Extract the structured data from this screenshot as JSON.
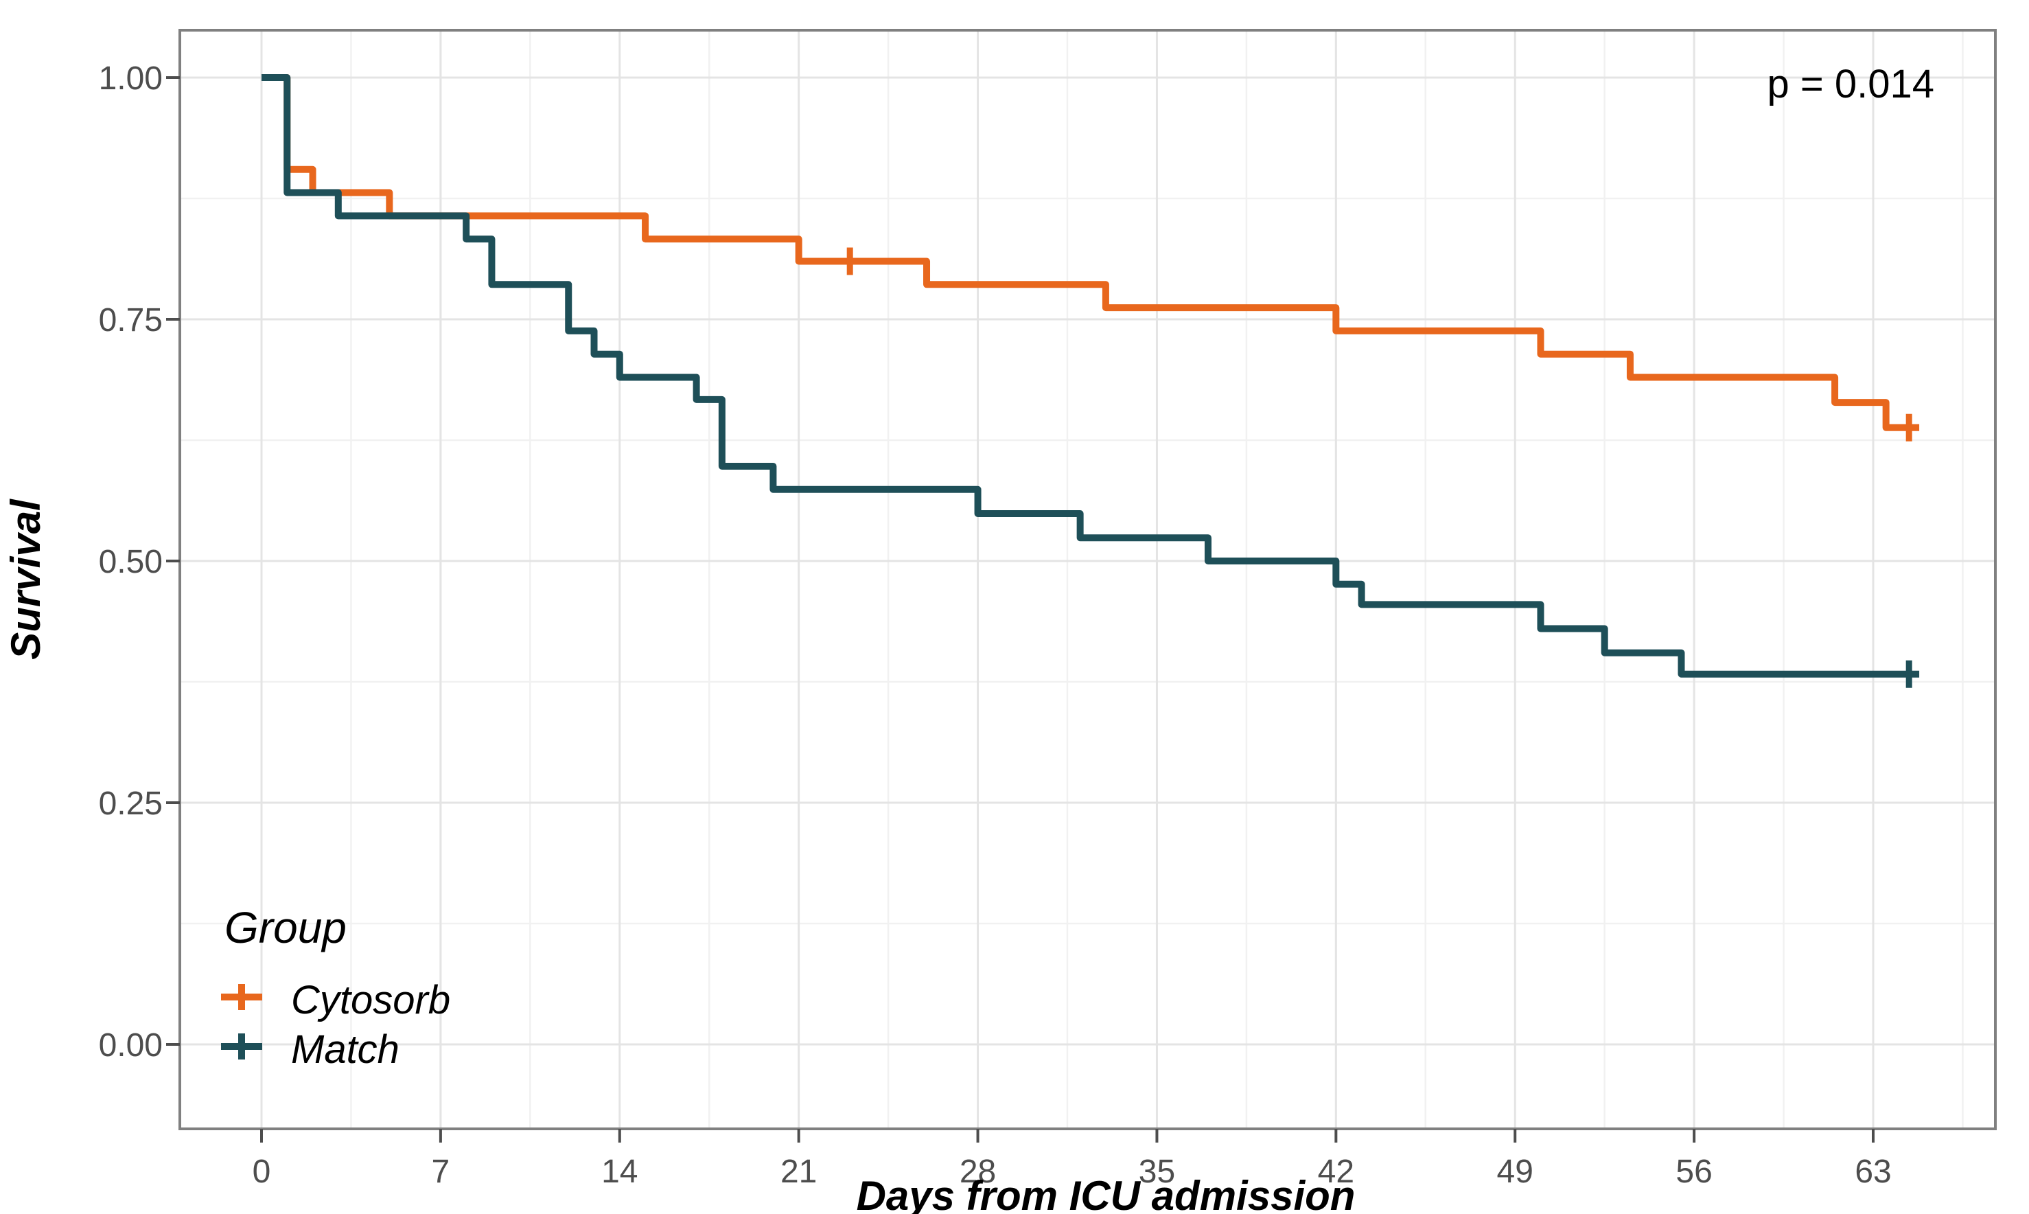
{
  "figure": {
    "background": "#ffffff",
    "panel_background": "#ffffff"
  },
  "colors": {
    "cytosorb": "#E8671D",
    "match": "#1E4F58",
    "grid_major": "#E4E4E4",
    "grid_minor": "#F1F1F1",
    "panel_border": "#808080",
    "tick_mark": "#4D4D4D",
    "tick_label": "#4D4D4D",
    "title_text": "#000000"
  },
  "annotation": {
    "p_value": "p = 0.014"
  },
  "axes": {
    "x": {
      "title": "Days from ICU admission",
      "major_ticks": [
        0,
        7,
        14,
        21,
        28,
        35,
        42,
        49,
        56,
        63
      ],
      "minor_ticks": [
        3.5,
        10.5,
        17.5,
        24.5,
        31.5,
        38.5,
        45.5,
        52.5,
        59.5,
        66.5
      ]
    },
    "y": {
      "title": "Survival",
      "major_ticks": [
        1.0,
        0.75,
        0.5,
        0.25,
        0.0
      ],
      "major_tick_labels": [
        "1.00",
        "0.75",
        "0.50",
        "0.25",
        "0.00"
      ],
      "minor_ticks": [
        0.875,
        0.625,
        0.375,
        0.125
      ]
    }
  },
  "legend": {
    "title": "Group",
    "items": [
      {
        "label": "Cytosorb",
        "color": "#E8671D",
        "key_icon": "plus-censor-icon"
      },
      {
        "label": "Match",
        "color": "#1E4F58",
        "key_icon": "plus-censor-icon"
      }
    ]
  },
  "chart_data": {
    "type": "line",
    "subtype": "kaplan-meier-step",
    "title": "",
    "xlabel": "Days from ICU admission",
    "ylabel": "Survival",
    "xlim": [
      -3.2,
      67.8
    ],
    "ylim": [
      -0.09,
      1.05
    ],
    "grid": true,
    "legend_position": "inside-bottom-left",
    "p_value_text": "p = 0.014",
    "series": [
      {
        "name": "Cytosorb",
        "color": "#E8671D",
        "steps": [
          [
            0,
            1.0
          ],
          [
            1,
            0.905
          ],
          [
            2,
            0.881
          ],
          [
            5,
            0.857
          ],
          [
            15,
            0.833
          ],
          [
            21,
            0.81
          ],
          [
            26,
            0.786
          ],
          [
            33,
            0.762
          ],
          [
            42,
            0.738
          ],
          [
            50,
            0.714
          ],
          [
            53.5,
            0.69
          ],
          [
            61.5,
            0.664
          ],
          [
            63.5,
            0.638
          ]
        ],
        "end_day": 64.8,
        "censors": [
          [
            23,
            0.81
          ],
          [
            64.4,
            0.638
          ]
        ]
      },
      {
        "name": "Match",
        "color": "#1E4F58",
        "steps": [
          [
            0,
            1.0
          ],
          [
            1,
            0.881
          ],
          [
            3,
            0.857
          ],
          [
            8,
            0.833
          ],
          [
            9,
            0.786
          ],
          [
            12,
            0.738
          ],
          [
            13,
            0.714
          ],
          [
            14,
            0.69
          ],
          [
            17,
            0.667
          ],
          [
            18,
            0.598
          ],
          [
            20,
            0.574
          ],
          [
            28,
            0.549
          ],
          [
            32,
            0.524
          ],
          [
            37,
            0.5
          ],
          [
            42,
            0.476
          ],
          [
            43,
            0.455
          ],
          [
            50,
            0.43
          ],
          [
            52.5,
            0.405
          ],
          [
            55.5,
            0.383
          ]
        ],
        "end_day": 64.8,
        "censors": [
          [
            64.4,
            0.383
          ]
        ]
      }
    ]
  }
}
